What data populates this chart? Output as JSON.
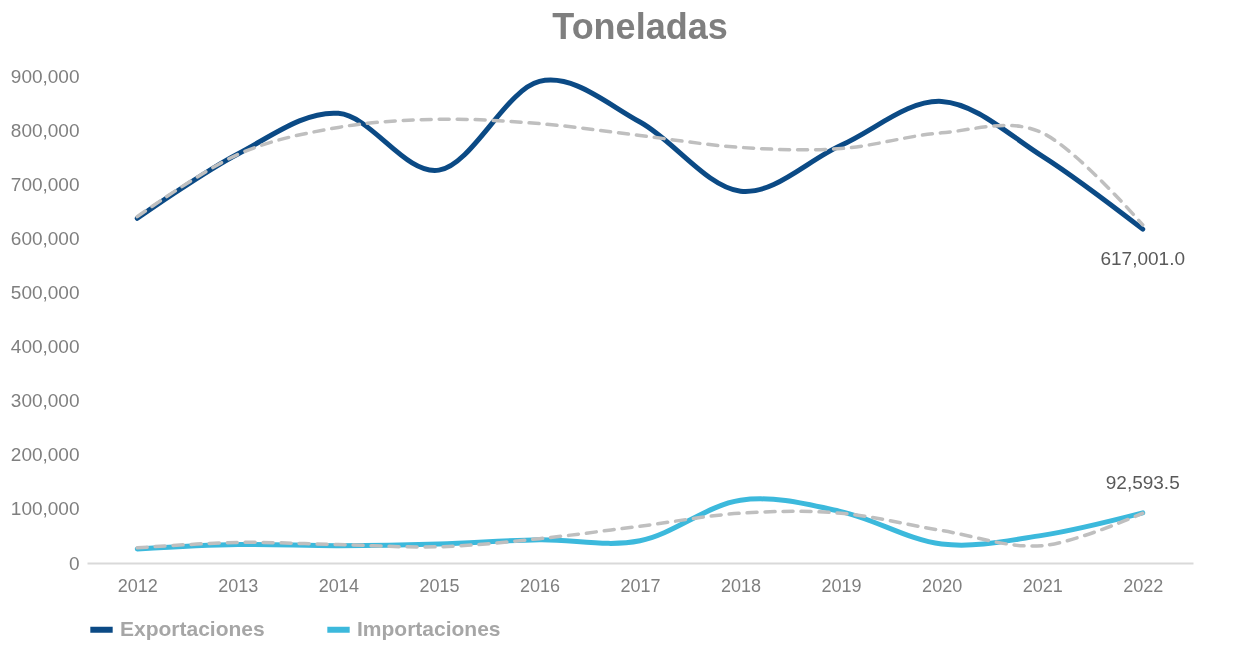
{
  "chart_data": {
    "type": "line",
    "title": "Toneladas",
    "categories": [
      "2012",
      "2013",
      "2014",
      "2015",
      "2016",
      "2017",
      "2018",
      "2019",
      "2020",
      "2021",
      "2022"
    ],
    "series": [
      {
        "name": "Exportaciones",
        "color": "#0b4a85",
        "values": [
          637000,
          756000,
          831000,
          726000,
          890000,
          815000,
          687000,
          772000,
          853000,
          752000,
          617001.0
        ],
        "value_labels": [
          null,
          null,
          null,
          null,
          null,
          null,
          null,
          null,
          null,
          null,
          "617,001.0"
        ]
      },
      {
        "name": "Importaciones",
        "color": "#3cb9dc",
        "values": [
          26000,
          34000,
          32000,
          35000,
          43000,
          41000,
          116000,
          95000,
          35000,
          51000,
          92593.5
        ],
        "value_labels": [
          null,
          null,
          null,
          null,
          null,
          null,
          null,
          null,
          null,
          null,
          "92,593.5"
        ]
      },
      {
        "type": "line",
        "color": "#bfbfbf",
        "line_style": "dashed",
        "values": [
          640000,
          755000,
          805000,
          820000,
          812000,
          790000,
          768000,
          766000,
          795000,
          795000,
          625000
        ]
      },
      {
        "type": "line",
        "color": "#bfbfbf",
        "line_style": "dashed",
        "values": [
          28000,
          38000,
          34000,
          30000,
          45000,
          68000,
          92000,
          92000,
          60000,
          32000,
          92000
        ]
      }
    ],
    "ylim": [
      0,
      900000
    ],
    "yticks": [
      0,
      {
        "value": 100000,
        "label": "100,000"
      },
      {
        "value": 200000,
        "label": "200,000"
      },
      {
        "value": 300000,
        "label": "300,000"
      },
      {
        "value": 400000,
        "label": "400,000"
      },
      {
        "value": 500000,
        "label": "500,000"
      },
      {
        "value": 600000,
        "label": "600,000"
      },
      {
        "value": 700000,
        "label": "700,000"
      },
      {
        "value": 800000,
        "label": "800,000"
      },
      {
        "value": 900000,
        "label": "900,000"
      }
    ],
    "grid": false,
    "legend": "bottom"
  }
}
